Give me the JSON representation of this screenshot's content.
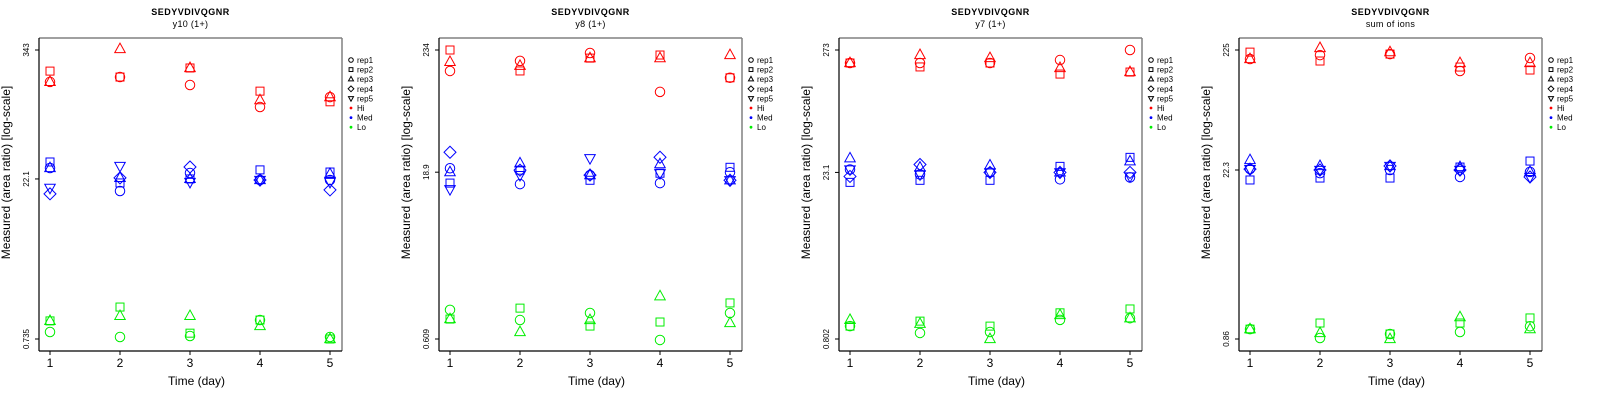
{
  "colors": {
    "Hi": "#ff0000",
    "Med": "#0000ff",
    "Lo": "#00ee00"
  },
  "legend": [
    {
      "label": "rep1",
      "symbol": "circle"
    },
    {
      "label": "rep2",
      "symbol": "square"
    },
    {
      "label": "rep3",
      "symbol": "triangle-up"
    },
    {
      "label": "rep4",
      "symbol": "diamond"
    },
    {
      "label": "rep5",
      "symbol": "triangle-down"
    },
    {
      "label": "Hi",
      "symbol": "dot",
      "group": "Hi"
    },
    {
      "label": "Med",
      "symbol": "dot",
      "group": "Med"
    },
    {
      "label": "Lo",
      "symbol": "dot",
      "group": "Lo"
    }
  ],
  "chart_data": [
    {
      "type": "scatter",
      "title": "SEDYVDIVQGNR",
      "subtitle": "y10 (1+)",
      "xlabel": "Time (day)",
      "ylabel": "Measured (area ratio) [log-scale]",
      "yscale": "log",
      "x_ticks": [
        1,
        2,
        3,
        4,
        5
      ],
      "y_ticks": [
        {
          "value": 343,
          "label": "343"
        },
        {
          "value": 22.1,
          "label": "22.1"
        },
        {
          "value": 0.735,
          "label": "0.735"
        }
      ],
      "legend_position": "right",
      "series": [
        {
          "group": "Hi",
          "rep": "rep1",
          "values": [
            174,
            193,
            163,
            102,
            126
          ]
        },
        {
          "group": "Hi",
          "rep": "rep2",
          "values": [
            219,
            193,
            234,
            143,
            114
          ]
        },
        {
          "group": "Hi",
          "rep": "rep3",
          "values": [
            174,
            350,
            234,
            118,
            126
          ]
        },
        {
          "group": "Med",
          "rep": "rep1",
          "values": [
            27.9,
            17.1,
            25.1,
            21.6,
            21.6
          ]
        },
        {
          "group": "Med",
          "rep": "rep2",
          "values": [
            31.7,
            20.3,
            22.1,
            26.8,
            25.6
          ]
        },
        {
          "group": "Med",
          "rep": "rep3",
          "values": [
            27.9,
            22.6,
            22.1,
            21.6,
            24.6
          ]
        },
        {
          "group": "Med",
          "rep": "rep4",
          "values": [
            16.1,
            22.6,
            28.5,
            21.6,
            17.5
          ]
        },
        {
          "group": "Med",
          "rep": "rep5",
          "values": [
            18.3,
            29.1,
            20.7,
            21.6,
            20.7
          ]
        },
        {
          "group": "Lo",
          "rep": "rep1",
          "values": [
            0.853,
            0.767,
            0.783,
            1.1,
            0.767
          ]
        },
        {
          "group": "Lo",
          "rep": "rep2",
          "values": [
            1.08,
            1.45,
            0.832,
            1.1,
            0.735
          ]
        },
        {
          "group": "Lo",
          "rep": "rep3",
          "values": [
            1.08,
            1.2,
            1.2,
            0.969,
            0.735
          ]
        }
      ]
    },
    {
      "type": "scatter",
      "title": "SEDYVDIVQGNR",
      "subtitle": "y8 (1+)",
      "xlabel": "Time (day)",
      "ylabel": "Measured (area ratio) [log-scale]",
      "yscale": "log",
      "x_ticks": [
        1,
        2,
        3,
        4,
        5
      ],
      "y_ticks": [
        {
          "value": 234,
          "label": "234"
        },
        {
          "value": 18.9,
          "label": "18.9"
        },
        {
          "value": 0.609,
          "label": "0.609"
        }
      ],
      "legend_position": "right",
      "series": [
        {
          "group": "Hi",
          "rep": "rep1",
          "values": [
            152,
            187,
            220,
            98.7,
            132
          ]
        },
        {
          "group": "Hi",
          "rep": "rep2",
          "values": [
            234,
            152,
            198,
            211,
            132
          ]
        },
        {
          "group": "Hi",
          "rep": "rep3",
          "values": [
            183,
            169,
            198,
            198,
            211
          ]
        },
        {
          "group": "Med",
          "rep": "rep1",
          "values": [
            20.5,
            14.8,
            17.8,
            15.1,
            18.9
          ]
        },
        {
          "group": "Med",
          "rep": "rep2",
          "values": [
            15.1,
            19.7,
            16.0,
            18.5,
            20.9
          ]
        },
        {
          "group": "Med",
          "rep": "rep3",
          "values": [
            18.9,
            22.7,
            17.8,
            22.3,
            16.0
          ]
        },
        {
          "group": "Med",
          "rep": "rep4",
          "values": [
            28.5,
            19.7,
            17.8,
            25.7,
            16.0
          ]
        },
        {
          "group": "Med",
          "rep": "rep5",
          "values": [
            13.3,
            17.8,
            25.2,
            18.5,
            16.0
          ]
        },
        {
          "group": "Lo",
          "rep": "rep1",
          "values": [
            1.11,
            0.9,
            1.04,
            0.597,
            1.04
          ]
        },
        {
          "group": "Lo",
          "rep": "rep2",
          "values": [
            0.918,
            1.15,
            0.795,
            0.864,
            1.28
          ]
        },
        {
          "group": "Lo",
          "rep": "rep3",
          "values": [
            0.918,
            0.703,
            0.9,
            1.47,
            0.846
          ]
        }
      ]
    },
    {
      "type": "scatter",
      "title": "SEDYVDIVQGNR",
      "subtitle": "y7 (1+)",
      "xlabel": "Time (day)",
      "ylabel": "Measured (area ratio) [log-scale]",
      "yscale": "log",
      "x_ticks": [
        1,
        2,
        3,
        4,
        5
      ],
      "y_ticks": [
        {
          "value": 273,
          "label": "273"
        },
        {
          "value": 23.1,
          "label": "23.1"
        },
        {
          "value": 0.802,
          "label": "0.802"
        }
      ],
      "legend_position": "right",
      "series": [
        {
          "group": "Hi",
          "rep": "rep1",
          "values": [
            210,
            210,
            210,
            223,
            273
          ]
        },
        {
          "group": "Hi",
          "rep": "rep2",
          "values": [
            210,
            194,
            210,
            168,
            175
          ]
        },
        {
          "group": "Hi",
          "rep": "rep3",
          "values": [
            210,
            247,
            232,
            190,
            175
          ]
        },
        {
          "group": "Med",
          "rep": "rep1",
          "values": [
            24.5,
            22.2,
            23.1,
            20.1,
            20.9
          ]
        },
        {
          "group": "Med",
          "rep": "rep2",
          "values": [
            18.9,
            19.7,
            19.7,
            26.1,
            31.3
          ]
        },
        {
          "group": "Med",
          "rep": "rep3",
          "values": [
            30.7,
            25.5,
            26.6,
            23.1,
            28.9
          ]
        },
        {
          "group": "Med",
          "rep": "rep4",
          "values": [
            21.3,
            27.1,
            23.1,
            23.1,
            23.1
          ]
        },
        {
          "group": "Med",
          "rep": "rep5",
          "values": [
            24.5,
            22.2,
            23.1,
            23.1,
            21.3
          ]
        },
        {
          "group": "Lo",
          "rep": "rep1",
          "values": [
            1.04,
            0.906,
            0.924,
            1.18,
            1.22
          ]
        },
        {
          "group": "Lo",
          "rep": "rep2",
          "values": [
            1.04,
            1.15,
            1.04,
            1.36,
            1.47
          ]
        },
        {
          "group": "Lo",
          "rep": "rep3",
          "values": [
            1.18,
            1.09,
            0.802,
            1.3,
            1.22
          ]
        }
      ]
    },
    {
      "type": "scatter",
      "title": "SEDYVDIVQGNR",
      "subtitle": "sum of ions",
      "xlabel": "Time (day)",
      "ylabel": "Measured (area ratio) [log-scale]",
      "yscale": "log",
      "x_ticks": [
        1,
        2,
        3,
        4,
        5
      ],
      "y_ticks": [
        {
          "value": 225,
          "label": "225"
        },
        {
          "value": 22.3,
          "label": "22.3"
        },
        {
          "value": 0.86,
          "label": "0.86"
        }
      ],
      "legend_position": "right",
      "series": [
        {
          "group": "Hi",
          "rep": "rep1",
          "values": [
            189,
            204,
            208,
            150,
            193
          ]
        },
        {
          "group": "Hi",
          "rep": "rep2",
          "values": [
            216,
            182,
            208,
            162,
            153
          ]
        },
        {
          "group": "Hi",
          "rep": "rep3",
          "values": [
            189,
            234,
            216,
            175,
            175
          ]
        },
        {
          "group": "Med",
          "rep": "rep1",
          "values": [
            22.7,
            21.0,
            22.3,
            19.5,
            21.5
          ]
        },
        {
          "group": "Med",
          "rep": "rep2",
          "values": [
            18.4,
            19.1,
            19.1,
            23.6,
            26.5
          ]
        },
        {
          "group": "Med",
          "rep": "rep3",
          "values": [
            27.0,
            24.1,
            24.1,
            23.6,
            21.5
          ]
        },
        {
          "group": "Med",
          "rep": "rep4",
          "values": [
            22.7,
            22.3,
            24.1,
            22.3,
            19.5
          ]
        },
        {
          "group": "Med",
          "rep": "rep5",
          "values": [
            22.7,
            22.3,
            24.1,
            22.3,
            19.5
          ]
        },
        {
          "group": "Lo",
          "rep": "rep1",
          "values": [
            1.04,
            0.876,
            0.947,
            0.984,
            1.1
          ]
        },
        {
          "group": "Lo",
          "rep": "rep2",
          "values": [
            1.04,
            1.17,
            0.947,
            1.17,
            1.29
          ]
        },
        {
          "group": "Lo",
          "rep": "rep3",
          "values": [
            1.04,
            0.966,
            0.86,
            1.31,
            1.04
          ]
        }
      ]
    }
  ]
}
